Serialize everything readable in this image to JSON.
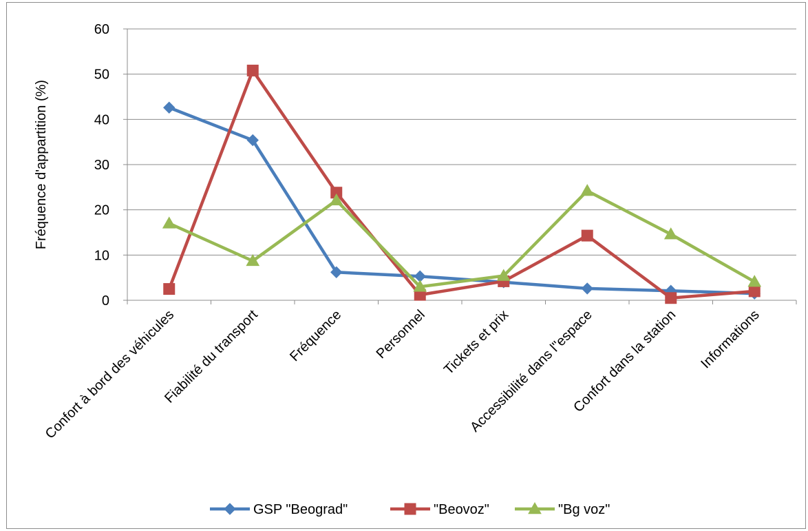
{
  "chart_data": {
    "type": "line",
    "title": "",
    "xlabel": "",
    "ylabel": "Fréquence d'appartition (%)",
    "ylim": [
      0,
      60
    ],
    "yticks": [
      0,
      10,
      20,
      30,
      40,
      50,
      60
    ],
    "grid": true,
    "legend": "bottom",
    "categories": [
      "Confort à bord des véhicules",
      "Fiabilité du transport",
      "Fréquence",
      "Personnel",
      "Tickets et prix",
      "Accessibilité dans l\"espace",
      "Confort dans la station",
      "Informations"
    ],
    "series": [
      {
        "name": "GSP \"Beograd\"",
        "marker": "diamond",
        "color": "#4a7ebb",
        "values": [
          42.6,
          35.4,
          6.2,
          5.3,
          4.0,
          2.6,
          2.1,
          1.5
        ]
      },
      {
        "name": "\"Beovoz\"",
        "marker": "square",
        "color": "#be4b48",
        "values": [
          2.5,
          50.8,
          23.8,
          1.2,
          4.2,
          14.3,
          0.5,
          2.0
        ]
      },
      {
        "name": "\"Bg voz\"",
        "marker": "triangle",
        "color": "#98b954",
        "values": [
          17.0,
          8.7,
          22.1,
          3.0,
          5.4,
          24.2,
          14.6,
          4.1
        ]
      }
    ]
  }
}
